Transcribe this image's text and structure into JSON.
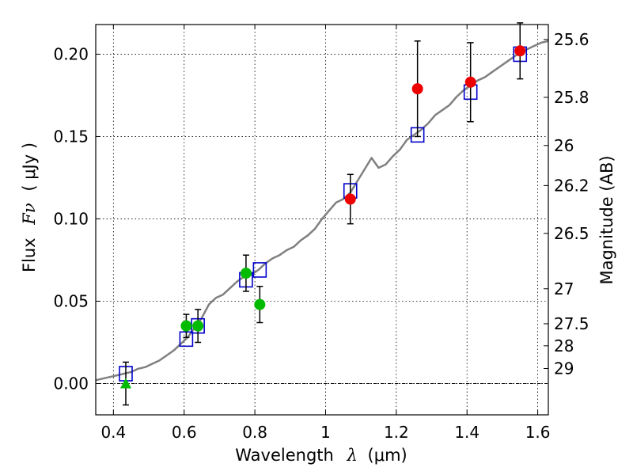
{
  "chart_data": {
    "type": "scatter",
    "xlabel_prefix": "Wavelength",
    "xlabel_symbol": "λ",
    "xlabel_unit": "(μm)",
    "ylabel_prefix": "Flux",
    "ylabel_symbol": "Fν",
    "ylabel_unit": "( μJy )",
    "y2label": "Magnitude (AB)",
    "xlim": [
      0.35,
      1.63
    ],
    "ylim": [
      -0.019,
      0.218
    ],
    "x_ticks": [
      {
        "value": 0.4,
        "label": "0.4"
      },
      {
        "value": 0.6,
        "label": "0.6"
      },
      {
        "value": 0.8,
        "label": "0.8"
      },
      {
        "value": 1.0,
        "label": "1"
      },
      {
        "value": 1.2,
        "label": "1.2"
      },
      {
        "value": 1.4,
        "label": "1.4"
      },
      {
        "value": 1.6,
        "label": "1.6"
      }
    ],
    "y_ticks": [
      {
        "value": 0.0,
        "label": "0.00"
      },
      {
        "value": 0.05,
        "label": "0.05"
      },
      {
        "value": 0.1,
        "label": "0.10"
      },
      {
        "value": 0.15,
        "label": "0.15"
      },
      {
        "value": 0.2,
        "label": "0.20"
      }
    ],
    "mag_ticks": [
      {
        "label": "25.6",
        "value": 25.6
      },
      {
        "label": "25.8",
        "value": 25.8
      },
      {
        "label": "26",
        "value": 26.0
      },
      {
        "label": "26.2",
        "value": 26.2
      },
      {
        "label": "26.5",
        "value": 26.5
      },
      {
        "label": "27",
        "value": 27.0
      },
      {
        "label": "27.5",
        "value": 27.5
      },
      {
        "label": "28",
        "value": 28.0
      },
      {
        "label": "29",
        "value": 29.0
      }
    ],
    "grid": true,
    "colors": {
      "model": "#808080",
      "model_photometry": "#0000cc",
      "observed_optical": "#00bb00",
      "observed_nir": "#ee0000",
      "errorbar": "#000000",
      "zero_line": "#000000"
    },
    "series": [
      {
        "role": "model-spectrum",
        "style": "line",
        "x": [
          0.35,
          0.37,
          0.39,
          0.41,
          0.43,
          0.45,
          0.47,
          0.49,
          0.51,
          0.53,
          0.55,
          0.57,
          0.59,
          0.61,
          0.63,
          0.65,
          0.67,
          0.69,
          0.71,
          0.73,
          0.75,
          0.77,
          0.79,
          0.81,
          0.83,
          0.85,
          0.87,
          0.89,
          0.91,
          0.93,
          0.95,
          0.97,
          0.99,
          1.01,
          1.03,
          1.05,
          1.07,
          1.09,
          1.11,
          1.13,
          1.15,
          1.17,
          1.19,
          1.21,
          1.23,
          1.25,
          1.27,
          1.29,
          1.31,
          1.33,
          1.35,
          1.37,
          1.39,
          1.41,
          1.43,
          1.45,
          1.47,
          1.49,
          1.51,
          1.53,
          1.55,
          1.57,
          1.59,
          1.61,
          1.63
        ],
        "y": [
          0.002,
          0.003,
          0.004,
          0.005,
          0.006,
          0.007,
          0.009,
          0.01,
          0.012,
          0.014,
          0.017,
          0.02,
          0.024,
          0.028,
          0.034,
          0.04,
          0.048,
          0.052,
          0.054,
          0.058,
          0.062,
          0.065,
          0.066,
          0.069,
          0.073,
          0.076,
          0.078,
          0.081,
          0.083,
          0.087,
          0.09,
          0.094,
          0.1,
          0.105,
          0.11,
          0.112,
          0.116,
          0.123,
          0.13,
          0.137,
          0.131,
          0.133,
          0.138,
          0.142,
          0.148,
          0.151,
          0.154,
          0.158,
          0.163,
          0.166,
          0.169,
          0.174,
          0.178,
          0.181,
          0.184,
          0.186,
          0.189,
          0.192,
          0.195,
          0.198,
          0.201,
          0.203,
          0.205,
          0.207,
          0.208
        ]
      },
      {
        "role": "model-photometry",
        "style": "open-square",
        "x": [
          0.435,
          0.606,
          0.639,
          0.775,
          0.814,
          1.07,
          1.26,
          1.41,
          1.55
        ],
        "y": [
          0.006,
          0.027,
          0.035,
          0.063,
          0.069,
          0.117,
          0.151,
          0.177,
          0.2
        ]
      },
      {
        "role": "observed-optical",
        "style": "filled-circle",
        "x": [
          0.606,
          0.639,
          0.775,
          0.814
        ],
        "y": [
          0.035,
          0.035,
          0.067,
          0.048
        ],
        "yerr": [
          0.007,
          0.01,
          0.011,
          0.011
        ]
      },
      {
        "role": "observed-uplimit",
        "style": "triangle",
        "x": [
          0.435
        ],
        "y": [
          0.0
        ],
        "yerr": [
          0.013
        ]
      },
      {
        "role": "observed-nir",
        "style": "filled-circle",
        "x": [
          1.07,
          1.26,
          1.41,
          1.55
        ],
        "y": [
          0.112,
          0.179,
          0.183,
          0.202
        ],
        "yerr": [
          0.015,
          0.029,
          0.024,
          0.017
        ]
      }
    ]
  }
}
